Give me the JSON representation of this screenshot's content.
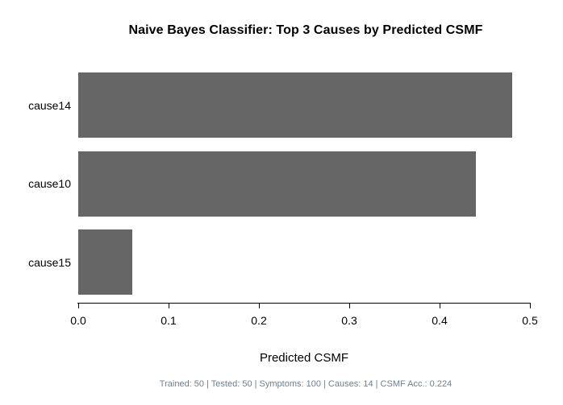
{
  "chart_data": {
    "type": "bar",
    "orientation": "horizontal",
    "title": "Naive Bayes Classifier: Top 3 Causes by Predicted CSMF",
    "categories": [
      "cause14",
      "cause10",
      "cause15"
    ],
    "values": [
      0.48,
      0.44,
      0.06
    ],
    "xlabel": "Predicted CSMF",
    "ylabel": "",
    "xlim": [
      0,
      0.5
    ],
    "x_ticks": [
      "0.0",
      "0.1",
      "0.2",
      "0.3",
      "0.4",
      "0.5"
    ],
    "x_tick_values": [
      0,
      0.1,
      0.2,
      0.3,
      0.4,
      0.5
    ],
    "bar_color": "#666666",
    "grid": false,
    "legend": false
  },
  "footer": {
    "text": "Trained: 50 | Tested: 50 | Symptoms: 100 | Causes: 14 | CSMF Acc.: 0.224",
    "color": "#708090"
  }
}
